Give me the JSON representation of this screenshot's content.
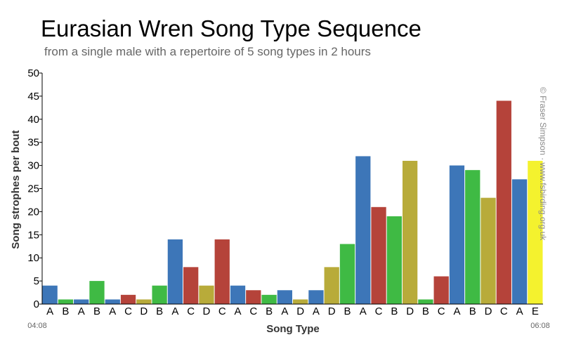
{
  "chart_data": {
    "type": "bar",
    "title": "Eurasian Wren Song Type Sequence",
    "subtitle": "from a single male with a repertoire of 5 song types in 2 hours",
    "xlabel": "Song Type",
    "ylabel": "Song strophes per bout",
    "ylim": [
      0,
      50
    ],
    "yticks": [
      0,
      5,
      10,
      15,
      20,
      25,
      30,
      35,
      40,
      45,
      50
    ],
    "x_start_label": "04:08",
    "x_end_label": "06:08",
    "grid": false,
    "categories": [
      "A",
      "B",
      "A",
      "B",
      "A",
      "C",
      "D",
      "B",
      "A",
      "C",
      "D",
      "C",
      "A",
      "C",
      "B",
      "A",
      "D",
      "A",
      "D",
      "B",
      "A",
      "C",
      "B",
      "D",
      "B",
      "C",
      "A",
      "B",
      "D",
      "C",
      "A",
      "E"
    ],
    "values": [
      4,
      1,
      1,
      5,
      1,
      2,
      1,
      4,
      14,
      8,
      4,
      14,
      4,
      3,
      2,
      3,
      1,
      3,
      8,
      13,
      32,
      21,
      19,
      31,
      1,
      6,
      30,
      29,
      23,
      44,
      27,
      31
    ],
    "type_colors": {
      "A": "#3d76b8",
      "B": "#3fba44",
      "C": "#b5433a",
      "D": "#b8ab3a",
      "E": "#f4f22e"
    }
  },
  "credit": "© Fraser Simpson  ·  www.fsbirding.org.uk"
}
